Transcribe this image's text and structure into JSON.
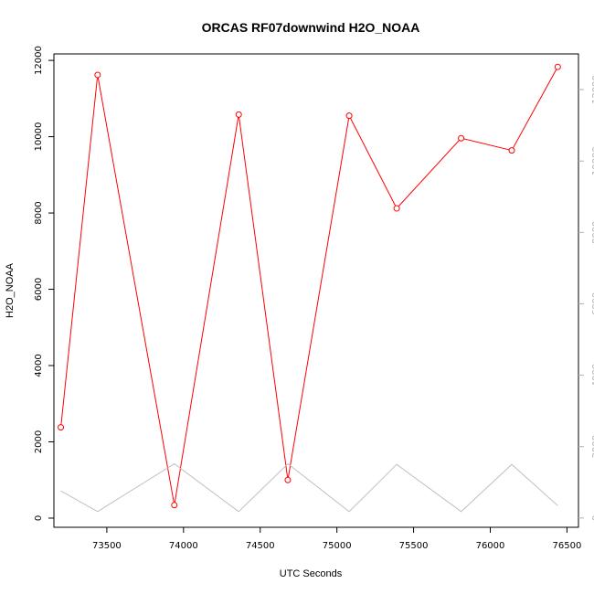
{
  "chart_data": {
    "type": "line",
    "title": "ORCAS RF07downwind H2O_NOAA",
    "xlabel": "UTC Seconds",
    "ylabel": "H2O_NOAA",
    "xlim": [
      73155,
      76575
    ],
    "ylim": [
      -240,
      12170
    ],
    "y2lim": [
      -260,
      13000
    ],
    "x_ticks": [
      73500,
      74000,
      74500,
      75000,
      75500,
      76000,
      76500
    ],
    "y_ticks": [
      0,
      2000,
      4000,
      6000,
      8000,
      10000,
      12000
    ],
    "y2_ticks": [
      0,
      2000,
      4000,
      6000,
      8000,
      10000,
      12000
    ],
    "grid": false,
    "series": [
      {
        "color": "#ff0000",
        "axis": "left",
        "marker": "open-circle",
        "x": [
          73200,
          73440,
          73940,
          74360,
          74680,
          75080,
          75390,
          75810,
          76140,
          76440
        ],
        "y": [
          2380,
          11620,
          340,
          10580,
          1000,
          10550,
          8120,
          9960,
          9640,
          11830
        ]
      },
      {
        "color": "#c0c0c0",
        "axis": "right",
        "marker": "none",
        "x": [
          73200,
          73440,
          73940,
          74360,
          74680,
          75080,
          75390,
          75810,
          76140,
          76440
        ],
        "y": [
          760,
          180,
          1520,
          180,
          1520,
          180,
          1500,
          180,
          1500,
          350
        ]
      }
    ]
  }
}
